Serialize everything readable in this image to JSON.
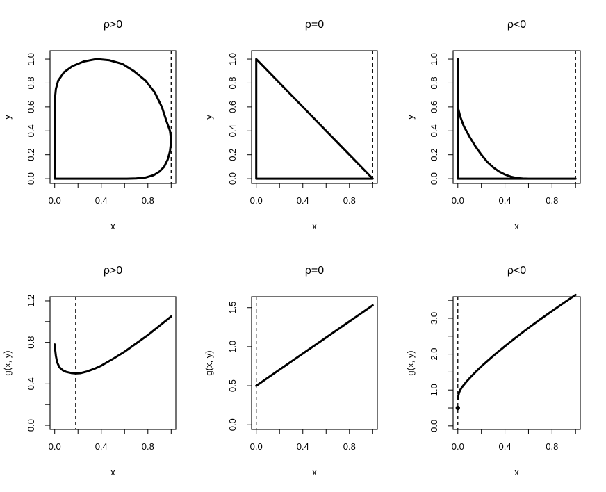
{
  "chart_data": [
    {
      "type": "line",
      "title": "ρ>0",
      "xlabel": "x",
      "ylabel": "y",
      "xlim": [
        -0.04,
        1.04
      ],
      "ylim": [
        -0.04,
        1.07
      ],
      "xticks": [
        0.0,
        0.4,
        0.8
      ],
      "xtick_labels": [
        "0.0",
        "0.4",
        "0.8"
      ],
      "xminor": [
        0.2,
        0.6,
        1.0
      ],
      "yticks": [
        0.0,
        0.2,
        0.4,
        0.6,
        0.8,
        1.0
      ],
      "ytick_labels": [
        "0.0",
        "0.2",
        "0.4",
        "0.6",
        "0.8",
        "1.0"
      ],
      "series": [
        {
          "x": [
            0.0,
            0.0,
            0.0,
            0.01,
            0.03,
            0.08,
            0.15,
            0.25,
            0.36,
            0.47,
            0.58,
            0.68,
            0.78,
            0.86,
            0.92,
            0.96,
            0.99,
            1.0,
            0.99,
            0.97,
            0.94,
            0.9,
            0.85,
            0.78,
            0.7,
            0.62,
            0.5,
            0.3,
            0.0
          ],
          "y": [
            0.0,
            0.3,
            0.65,
            0.75,
            0.82,
            0.89,
            0.94,
            0.98,
            1.0,
            0.99,
            0.96,
            0.9,
            0.82,
            0.72,
            0.6,
            0.48,
            0.4,
            0.32,
            0.23,
            0.16,
            0.1,
            0.06,
            0.03,
            0.01,
            0.002,
            0.0,
            0.0,
            0.0,
            0.0
          ]
        }
      ],
      "vlines": [
        1.0
      ]
    },
    {
      "type": "line",
      "title": "ρ=0",
      "xlabel": "x",
      "ylabel": "y",
      "xlim": [
        -0.04,
        1.04
      ],
      "ylim": [
        -0.04,
        1.07
      ],
      "xticks": [
        0.0,
        0.4,
        0.8
      ],
      "xtick_labels": [
        "0.0",
        "0.4",
        "0.8"
      ],
      "xminor": [
        0.2,
        0.6,
        1.0
      ],
      "yticks": [
        0.0,
        0.2,
        0.4,
        0.6,
        0.8,
        1.0
      ],
      "ytick_labels": [
        "0.0",
        "0.2",
        "0.4",
        "0.6",
        "0.8",
        "1.0"
      ],
      "series": [
        {
          "x": [
            0.0,
            0.0,
            1.0,
            0.0
          ],
          "y": [
            0.0,
            1.0,
            0.0,
            0.0
          ]
        }
      ],
      "vlines": [
        1.0
      ]
    },
    {
      "type": "line",
      "title": "ρ<0",
      "xlabel": "x",
      "ylabel": "y",
      "xlim": [
        -0.04,
        1.04
      ],
      "ylim": [
        -0.04,
        1.07
      ],
      "xticks": [
        0.0,
        0.4,
        0.8
      ],
      "xtick_labels": [
        "0.0",
        "0.4",
        "0.8"
      ],
      "xminor": [
        0.2,
        0.6,
        1.0
      ],
      "yticks": [
        0.0,
        0.2,
        0.4,
        0.6,
        0.8,
        1.0
      ],
      "ytick_labels": [
        "0.0",
        "0.2",
        "0.4",
        "0.6",
        "0.8",
        "1.0"
      ],
      "series": [
        {
          "x": [
            0.0,
            0.0,
            0.0,
            0.02,
            0.05,
            0.1,
            0.15,
            0.2,
            0.25,
            0.3,
            0.35,
            0.4,
            0.45,
            0.5,
            0.55,
            0.6,
            1.0,
            0.0
          ],
          "y": [
            0.0,
            1.0,
            0.6,
            0.52,
            0.44,
            0.35,
            0.27,
            0.2,
            0.14,
            0.095,
            0.06,
            0.035,
            0.017,
            0.006,
            0.001,
            0.0,
            0.0,
            0.0
          ]
        }
      ],
      "vlines": [
        1.0
      ]
    },
    {
      "type": "line",
      "title": "ρ>0",
      "xlabel": "x",
      "ylabel": "g(x, y)",
      "xlim": [
        -0.04,
        1.04
      ],
      "ylim": [
        -0.04,
        1.24
      ],
      "xticks": [
        0.0,
        0.4,
        0.8
      ],
      "xtick_labels": [
        "0.0",
        "0.4",
        "0.8"
      ],
      "xminor": [
        0.2,
        0.6,
        1.0
      ],
      "yticks": [
        0.0,
        0.4,
        0.8,
        1.2
      ],
      "ytick_labels": [
        "0.0",
        "0.4",
        "0.8",
        "1.2"
      ],
      "yminor": [
        0.2,
        0.6,
        1.0
      ],
      "series": [
        {
          "x": [
            0.0,
            0.005,
            0.01,
            0.02,
            0.04,
            0.07,
            0.1,
            0.14,
            0.18,
            0.22,
            0.28,
            0.34,
            0.4,
            0.5,
            0.6,
            0.7,
            0.8,
            0.9,
            1.0
          ],
          "y": [
            0.78,
            0.72,
            0.67,
            0.61,
            0.56,
            0.53,
            0.515,
            0.505,
            0.5,
            0.503,
            0.52,
            0.545,
            0.575,
            0.64,
            0.71,
            0.79,
            0.87,
            0.96,
            1.05
          ]
        }
      ],
      "vlines": [
        0.18
      ]
    },
    {
      "type": "line",
      "title": "ρ=0",
      "xlabel": "x",
      "ylabel": "g(x, y)",
      "xlim": [
        -0.04,
        1.04
      ],
      "ylim": [
        -0.06,
        1.64
      ],
      "xticks": [
        0.0,
        0.4,
        0.8
      ],
      "xtick_labels": [
        "0.0",
        "0.4",
        "0.8"
      ],
      "xminor": [
        0.2,
        0.6,
        1.0
      ],
      "yticks": [
        0.0,
        0.5,
        1.0,
        1.5
      ],
      "ytick_labels": [
        "0.0",
        "0.5",
        "1.0",
        "1.5"
      ],
      "series": [
        {
          "x": [
            0.0,
            1.0
          ],
          "y": [
            0.5,
            1.53
          ]
        }
      ],
      "vlines": [
        0.0
      ]
    },
    {
      "type": "line",
      "title": "ρ<0",
      "xlabel": "x",
      "ylabel": "g(x, y)",
      "xlim": [
        -0.04,
        1.04
      ],
      "ylim": [
        -0.1,
        3.6
      ],
      "xticks": [
        0.0,
        0.4,
        0.8
      ],
      "xtick_labels": [
        "0.0",
        "0.4",
        "0.8"
      ],
      "xminor": [
        0.2,
        0.6,
        1.0
      ],
      "yticks": [
        0.0,
        1.0,
        2.0,
        3.0
      ],
      "ytick_labels": [
        "0.0",
        "1.0",
        "2.0",
        "3.0"
      ],
      "yminor": [
        0.5,
        1.5,
        2.5,
        3.5
      ],
      "series": [
        {
          "x": [
            0.0,
            0.005,
            0.01,
            0.02,
            0.04,
            0.07,
            0.1,
            0.15,
            0.2,
            0.3,
            0.4,
            0.5,
            0.6,
            0.7,
            0.8,
            0.9,
            1.0
          ],
          "y": [
            0.75,
            0.85,
            0.92,
            1.0,
            1.1,
            1.22,
            1.33,
            1.5,
            1.66,
            1.95,
            2.22,
            2.48,
            2.73,
            2.97,
            3.2,
            3.43,
            3.65
          ]
        }
      ],
      "points": [
        {
          "x": 0.0,
          "y": 0.5
        }
      ],
      "vlines": [
        0.0
      ]
    }
  ]
}
